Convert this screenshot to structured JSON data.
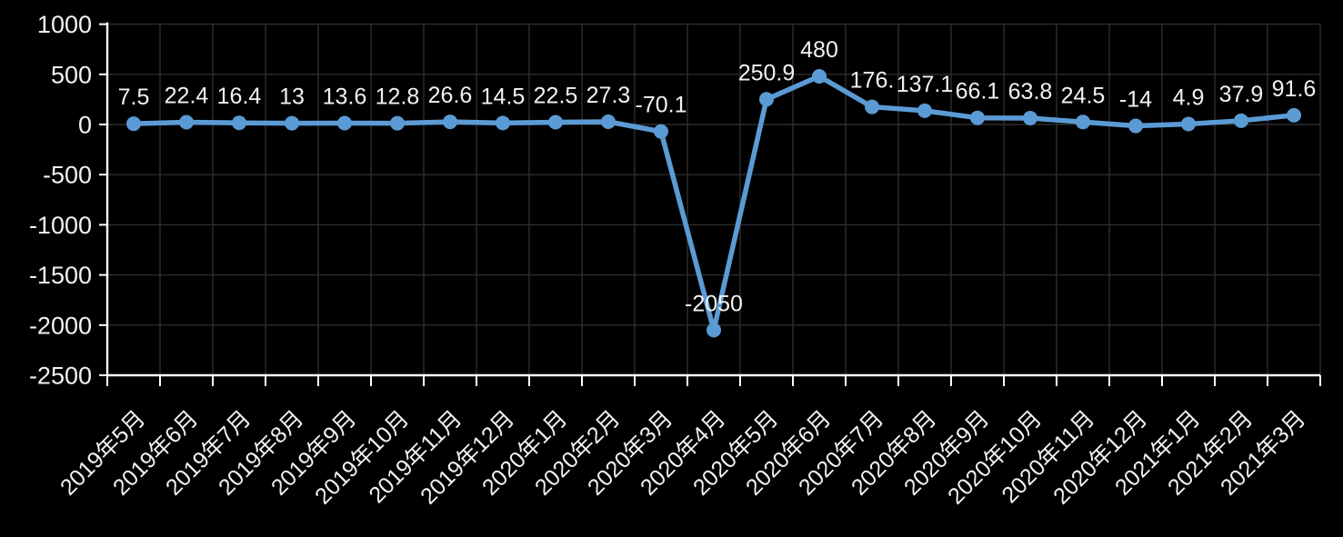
{
  "chart_data": {
    "type": "line",
    "title": "",
    "xlabel": "",
    "ylabel": "",
    "categories": [
      "2019年5月",
      "2019年6月",
      "2019年7月",
      "2019年8月",
      "2019年9月",
      "2019年10月",
      "2019年11月",
      "2019年12月",
      "2020年1月",
      "2020年2月",
      "2020年3月",
      "2020年4月",
      "2020年5月",
      "2020年6月",
      "2020年7月",
      "2020年8月",
      "2020年9月",
      "2020年10月",
      "2020年11月",
      "2020年12月",
      "2021年1月",
      "2021年2月",
      "2021年3月"
    ],
    "values": [
      7.5,
      22.4,
      16.4,
      13,
      13.6,
      12.8,
      26.6,
      14.5,
      22.5,
      27.3,
      -70.1,
      -2050,
      250.9,
      480,
      176,
      137.1,
      66.1,
      63.8,
      24.5,
      -14,
      4.9,
      37.9,
      91.6
    ],
    "point_labels": [
      "7.5",
      "22.4",
      "16.4",
      "13",
      "13.6",
      "12.8",
      "26.6",
      "14.5",
      "22.5",
      "27.3",
      "-70.1",
      "-2050",
      "250.9",
      "480",
      "176.",
      "137.1",
      "66.1",
      "63.8",
      "24.5",
      "-14",
      "4.9",
      "37.9",
      "91.6"
    ],
    "y_ticks": [
      1000,
      500,
      0,
      -500,
      -1000,
      -1500,
      -2000,
      -2500
    ],
    "ylim": [
      -2500,
      1000
    ],
    "grid": true,
    "legend_position": "none",
    "colors": {
      "background": "#000000",
      "series": "#5B9BD5",
      "grid": "#2d2d2d",
      "axis": "#ffffff",
      "data_label": "#f2f2f2",
      "tick_label": "#f2f2f2"
    }
  }
}
